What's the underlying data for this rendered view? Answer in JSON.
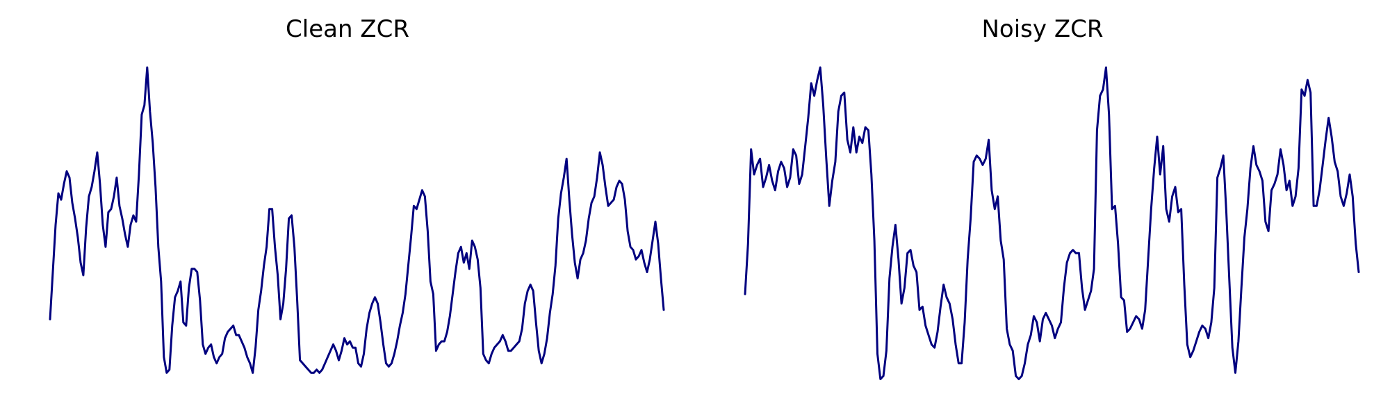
{
  "chart_data": [
    {
      "type": "line",
      "title": "Clean ZCR",
      "xlabel": "",
      "ylabel": "",
      "axes_visible": false,
      "grid": false,
      "color": "#00007F",
      "ylim": [
        0.0,
        1.0
      ],
      "values": [
        0.2,
        0.35,
        0.5,
        0.6,
        0.58,
        0.63,
        0.67,
        0.65,
        0.57,
        0.52,
        0.46,
        0.38,
        0.34,
        0.49,
        0.59,
        0.62,
        0.67,
        0.73,
        0.63,
        0.5,
        0.43,
        0.54,
        0.55,
        0.59,
        0.65,
        0.56,
        0.52,
        0.47,
        0.43,
        0.5,
        0.53,
        0.51,
        0.66,
        0.85,
        0.88,
        1.0,
        0.86,
        0.76,
        0.62,
        0.43,
        0.32,
        0.08,
        0.03,
        0.04,
        0.18,
        0.27,
        0.29,
        0.32,
        0.19,
        0.18,
        0.3,
        0.36,
        0.36,
        0.35,
        0.26,
        0.12,
        0.09,
        0.11,
        0.12,
        0.08,
        0.06,
        0.08,
        0.09,
        0.14,
        0.16,
        0.17,
        0.18,
        0.15,
        0.15,
        0.13,
        0.11,
        0.08,
        0.06,
        0.03,
        0.11,
        0.23,
        0.29,
        0.37,
        0.43,
        0.55,
        0.55,
        0.43,
        0.34,
        0.2,
        0.25,
        0.36,
        0.52,
        0.53,
        0.43,
        0.26,
        0.07,
        0.06,
        0.05,
        0.04,
        0.03,
        0.03,
        0.04,
        0.03,
        0.04,
        0.06,
        0.08,
        0.1,
        0.12,
        0.1,
        0.07,
        0.1,
        0.14,
        0.12,
        0.13,
        0.11,
        0.11,
        0.06,
        0.05,
        0.09,
        0.17,
        0.22,
        0.25,
        0.27,
        0.25,
        0.19,
        0.12,
        0.06,
        0.05,
        0.06,
        0.09,
        0.13,
        0.18,
        0.22,
        0.28,
        0.37,
        0.46,
        0.56,
        0.55,
        0.58,
        0.61,
        0.59,
        0.48,
        0.32,
        0.28,
        0.1,
        0.12,
        0.13,
        0.13,
        0.16,
        0.21,
        0.28,
        0.35,
        0.41,
        0.43,
        0.38,
        0.41,
        0.36,
        0.45,
        0.43,
        0.39,
        0.3,
        0.09,
        0.07,
        0.06,
        0.09,
        0.11,
        0.12,
        0.13,
        0.15,
        0.13,
        0.1,
        0.1,
        0.11,
        0.12,
        0.13,
        0.17,
        0.25,
        0.29,
        0.31,
        0.29,
        0.19,
        0.1,
        0.06,
        0.09,
        0.14,
        0.22,
        0.28,
        0.37,
        0.52,
        0.6,
        0.65,
        0.71,
        0.58,
        0.47,
        0.38,
        0.33,
        0.39,
        0.41,
        0.45,
        0.52,
        0.57,
        0.59,
        0.65,
        0.73,
        0.69,
        0.62,
        0.56,
        0.57,
        0.58,
        0.62,
        0.64,
        0.63,
        0.58,
        0.48,
        0.43,
        0.42,
        0.39,
        0.4,
        0.42,
        0.38,
        0.35,
        0.39,
        0.45,
        0.51,
        0.44,
        0.33,
        0.23
      ]
    },
    {
      "type": "line",
      "title": "Noisy ZCR",
      "xlabel": "",
      "ylabel": "",
      "axes_visible": false,
      "grid": false,
      "color": "#00007F",
      "ylim": [
        0.0,
        1.0
      ],
      "values": [
        0.28,
        0.44,
        0.74,
        0.66,
        0.69,
        0.71,
        0.62,
        0.65,
        0.69,
        0.64,
        0.61,
        0.67,
        0.7,
        0.68,
        0.62,
        0.65,
        0.74,
        0.72,
        0.63,
        0.66,
        0.75,
        0.84,
        0.95,
        0.91,
        0.96,
        1.0,
        0.88,
        0.71,
        0.56,
        0.64,
        0.7,
        0.86,
        0.91,
        0.92,
        0.77,
        0.73,
        0.81,
        0.73,
        0.78,
        0.76,
        0.81,
        0.8,
        0.66,
        0.45,
        0.09,
        0.01,
        0.02,
        0.1,
        0.33,
        0.43,
        0.5,
        0.39,
        0.25,
        0.3,
        0.41,
        0.42,
        0.37,
        0.35,
        0.23,
        0.24,
        0.18,
        0.15,
        0.12,
        0.11,
        0.16,
        0.24,
        0.31,
        0.27,
        0.25,
        0.2,
        0.12,
        0.06,
        0.06,
        0.19,
        0.39,
        0.52,
        0.7,
        0.72,
        0.71,
        0.69,
        0.71,
        0.77,
        0.61,
        0.55,
        0.59,
        0.45,
        0.39,
        0.17,
        0.12,
        0.1,
        0.02,
        0.01,
        0.02,
        0.06,
        0.12,
        0.15,
        0.21,
        0.19,
        0.13,
        0.2,
        0.22,
        0.2,
        0.18,
        0.14,
        0.17,
        0.19,
        0.3,
        0.38,
        0.41,
        0.42,
        0.41,
        0.41,
        0.3,
        0.23,
        0.26,
        0.29,
        0.36,
        0.8,
        0.91,
        0.93,
        1.0,
        0.85,
        0.55,
        0.56,
        0.44,
        0.27,
        0.26,
        0.16,
        0.17,
        0.19,
        0.21,
        0.2,
        0.17,
        0.23,
        0.39,
        0.55,
        0.68,
        0.78,
        0.66,
        0.75,
        0.55,
        0.51,
        0.59,
        0.62,
        0.54,
        0.55,
        0.31,
        0.12,
        0.08,
        0.1,
        0.13,
        0.16,
        0.18,
        0.17,
        0.14,
        0.19,
        0.3,
        0.65,
        0.68,
        0.72,
        0.54,
        0.32,
        0.11,
        0.03,
        0.13,
        0.3,
        0.46,
        0.55,
        0.68,
        0.75,
        0.69,
        0.67,
        0.64,
        0.51,
        0.48,
        0.61,
        0.63,
        0.66,
        0.74,
        0.69,
        0.61,
        0.64,
        0.56,
        0.59,
        0.68,
        0.93,
        0.91,
        0.96,
        0.92,
        0.56,
        0.56,
        0.61,
        0.69,
        0.77,
        0.84,
        0.78,
        0.7,
        0.67,
        0.59,
        0.56,
        0.6,
        0.66,
        0.59,
        0.44,
        0.35
      ]
    }
  ]
}
